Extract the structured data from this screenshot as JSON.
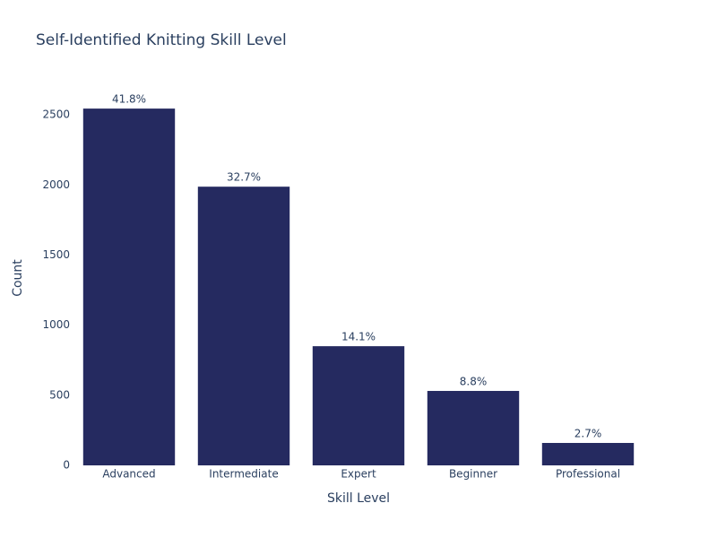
{
  "chart_data": {
    "type": "bar",
    "title": "Self-Identified Knitting Skill Level",
    "x_label": "Skill Level",
    "y_label": "Count",
    "categories": [
      "Advanced",
      "Intermediate",
      "Expert",
      "Beginner",
      "Professional"
    ],
    "values": [
      2545,
      1988,
      850,
      531,
      160
    ],
    "value_labels": [
      "41.8%",
      "32.7%",
      "14.1%",
      "8.8%",
      "2.7%"
    ],
    "color": "#252a60",
    "ylim": [
      0,
      2680
    ],
    "yticks": [
      0,
      500,
      1000,
      1500,
      2000,
      2500
    ],
    "grid": false
  }
}
